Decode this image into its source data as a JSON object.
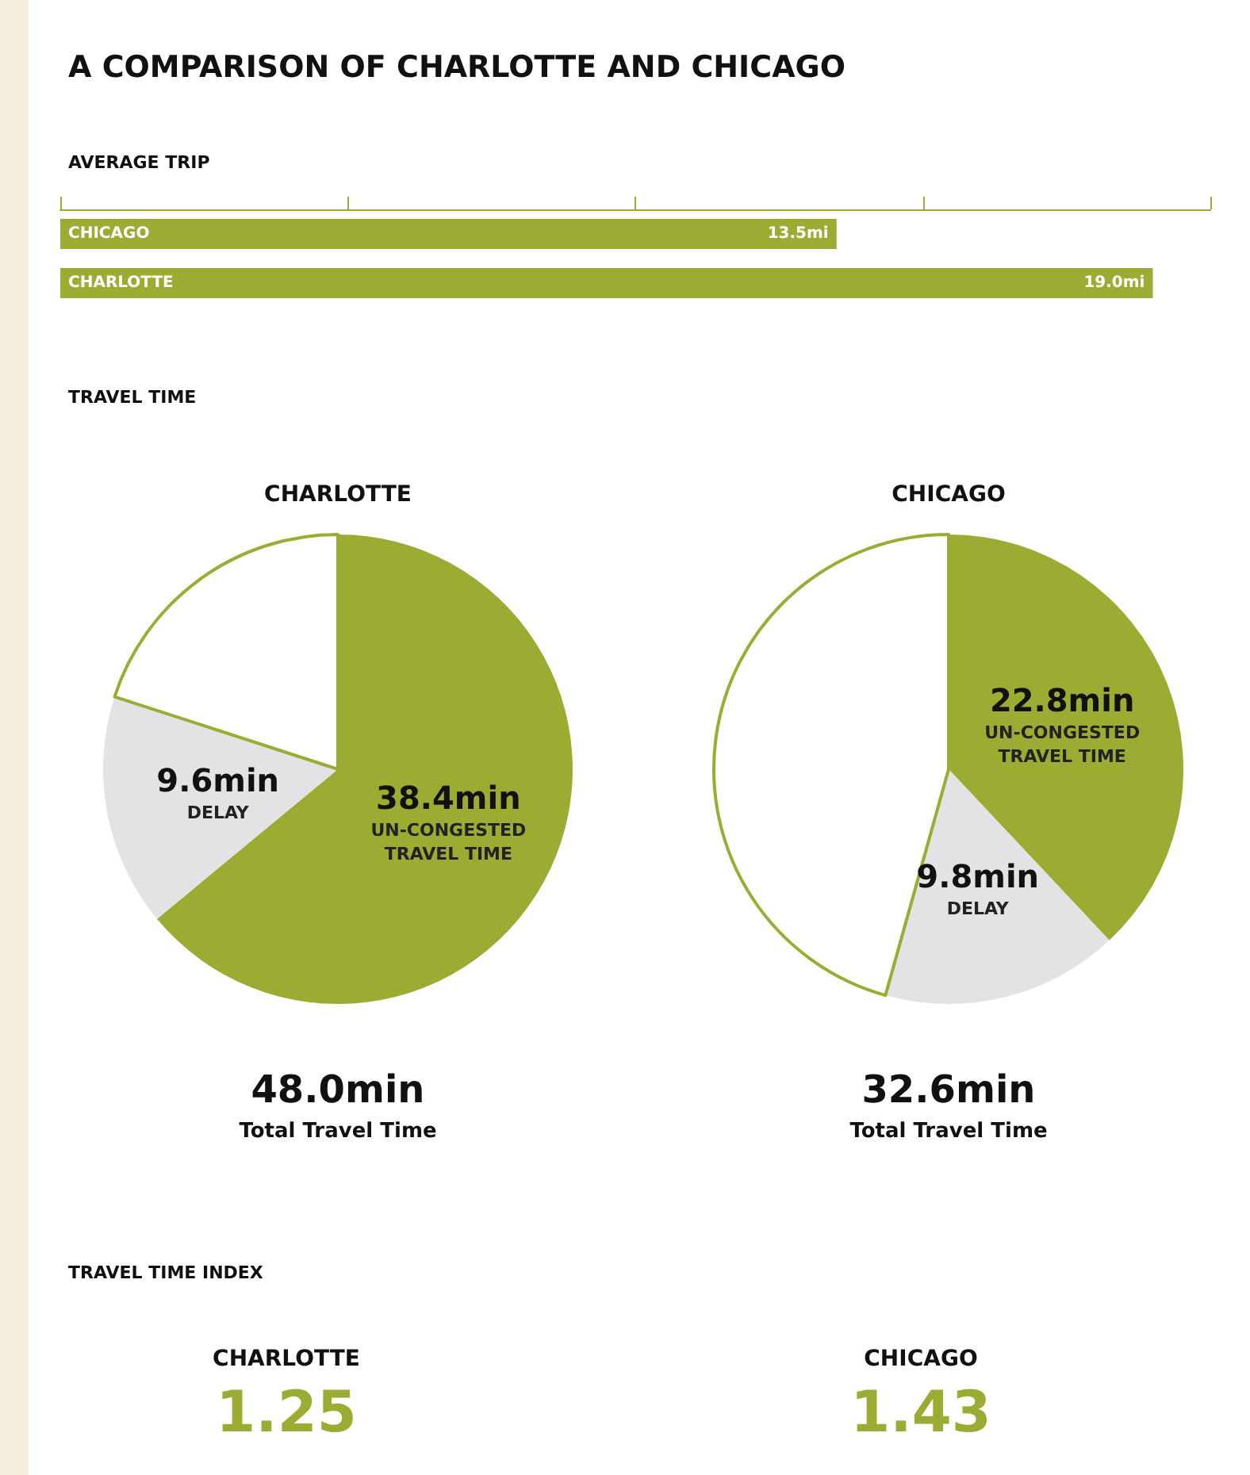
{
  "chart_data": [
    {
      "type": "bar",
      "title": "A COMPARISON OF CHARLOTTE AND CHICAGO",
      "subtitle": "AVERAGE TRIP",
      "orientation": "horizontal",
      "categories": [
        "CHICAGO",
        "CHARLOTTE"
      ],
      "values": [
        13.5,
        19.0
      ],
      "value_labels": [
        "13.5mi",
        "19.0mi"
      ],
      "color": "#9cac33",
      "xlim": [
        0,
        20
      ],
      "xticks": [
        {
          "value": 0,
          "label": null
        },
        {
          "value": 5,
          "label": null
        },
        {
          "value": 10,
          "label": null
        },
        {
          "value": 15,
          "label": null
        },
        {
          "value": 20,
          "label": null
        }
      ],
      "grid": false,
      "legend": false
    },
    {
      "type": "pie",
      "subtitle": "TRAVEL TIME",
      "title": "CHARLOTTE",
      "categories": [
        "UN-CONGESTED TRAVEL TIME",
        "DELAY",
        null
      ],
      "values": [
        38.4,
        9.6,
        12.0
      ],
      "value_labels": [
        "38.4min",
        "9.6min",
        null
      ],
      "colors": [
        "#9cac33",
        "#e3e3e5",
        "#ffffff"
      ],
      "annotations": [
        "48.0min",
        "Total Travel Time"
      ],
      "legend": false
    },
    {
      "type": "pie",
      "title": "CHICAGO",
      "categories": [
        "UN-CONGESTED TRAVEL TIME",
        "DELAY",
        null
      ],
      "values": [
        22.8,
        9.8,
        27.4
      ],
      "value_labels": [
        "22.8min",
        "9.8min",
        null
      ],
      "colors": [
        "#9cac33",
        "#e3e3e5",
        "#ffffff"
      ],
      "annotations": [
        "32.6min",
        "Total Travel Time"
      ],
      "legend": false
    },
    {
      "type": "other",
      "title": "TRAVEL TIME INDEX",
      "annotations": [
        "CHARLOTTE",
        "1.25",
        "CHICAGO",
        "1.43"
      ]
    }
  ]
}
